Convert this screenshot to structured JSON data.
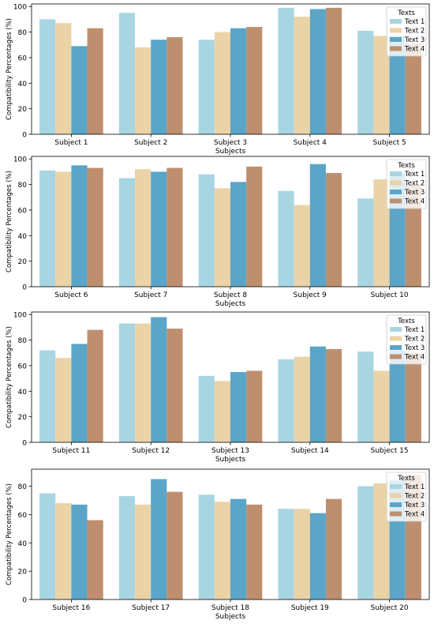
{
  "chart_data": [
    {
      "type": "bar",
      "xlabel": "Subjects",
      "ylabel": "Compatibility Percentages (%)",
      "ylim": [
        0,
        102
      ],
      "yticks": [
        0,
        20,
        40,
        60,
        80,
        100
      ],
      "legend_title": "Texts",
      "legend_position": "top-right",
      "categories": [
        "Subject 1",
        "Subject 2",
        "Subject 3",
        "Subject 4",
        "Subject 5"
      ],
      "series": [
        {
          "name": "Text 1",
          "color": "#a8d5e2",
          "values": [
            90,
            95,
            74,
            99,
            81
          ]
        },
        {
          "name": "Text 2",
          "color": "#ebd3a8",
          "values": [
            87,
            68,
            80,
            92,
            77
          ]
        },
        {
          "name": "Text 3",
          "color": "#5aa5c8",
          "values": [
            69,
            74,
            83,
            98,
            77
          ]
        },
        {
          "name": "Text 4",
          "color": "#be8f6e",
          "values": [
            83,
            76,
            84,
            99,
            71
          ]
        }
      ]
    },
    {
      "type": "bar",
      "xlabel": "Subjects",
      "ylabel": "Compatibility Percentages (%)",
      "ylim": [
        0,
        102
      ],
      "yticks": [
        0,
        20,
        40,
        60,
        80,
        100
      ],
      "legend_title": "Texts",
      "legend_position": "top-right",
      "categories": [
        "Subject 6",
        "Subject 7",
        "Subject 8",
        "Subject 9",
        "Subject 10"
      ],
      "series": [
        {
          "name": "Text 1",
          "color": "#a8d5e2",
          "values": [
            91,
            85,
            88,
            75,
            69
          ]
        },
        {
          "name": "Text 2",
          "color": "#ebd3a8",
          "values": [
            90,
            92,
            77,
            64,
            84
          ]
        },
        {
          "name": "Text 3",
          "color": "#5aa5c8",
          "values": [
            95,
            90,
            82,
            96,
            89
          ]
        },
        {
          "name": "Text 4",
          "color": "#be8f6e",
          "values": [
            93,
            93,
            94,
            89,
            80
          ]
        }
      ]
    },
    {
      "type": "bar",
      "xlabel": "Subjects",
      "ylabel": "Compatibility Percentages (%)",
      "ylim": [
        0,
        102
      ],
      "yticks": [
        0,
        20,
        40,
        60,
        80,
        100
      ],
      "legend_title": "Texts",
      "legend_position": "top-right",
      "categories": [
        "Subject 11",
        "Subject 12",
        "Subject 13",
        "Subject 14",
        "Subject 15"
      ],
      "series": [
        {
          "name": "Text 1",
          "color": "#a8d5e2",
          "values": [
            72,
            93,
            52,
            65,
            71
          ]
        },
        {
          "name": "Text 2",
          "color": "#ebd3a8",
          "values": [
            66,
            93,
            48,
            67,
            56
          ]
        },
        {
          "name": "Text 3",
          "color": "#5aa5c8",
          "values": [
            77,
            98,
            55,
            75,
            72
          ]
        },
        {
          "name": "Text 4",
          "color": "#be8f6e",
          "values": [
            88,
            89,
            56,
            73,
            70
          ]
        }
      ]
    },
    {
      "type": "bar",
      "xlabel": "Subjects",
      "ylabel": "Compatibility Percentages (%)",
      "ylim": [
        0,
        92
      ],
      "yticks": [
        0,
        20,
        40,
        60,
        80
      ],
      "legend_title": "Texts",
      "legend_position": "top-right",
      "categories": [
        "Subject 16",
        "Subject 17",
        "Subject 18",
        "Subject 19",
        "Subject 20"
      ],
      "series": [
        {
          "name": "Text 1",
          "color": "#a8d5e2",
          "values": [
            75,
            73,
            74,
            64,
            80
          ]
        },
        {
          "name": "Text 2",
          "color": "#ebd3a8",
          "values": [
            68,
            67,
            69,
            64,
            82
          ]
        },
        {
          "name": "Text 3",
          "color": "#5aa5c8",
          "values": [
            67,
            85,
            71,
            61,
            84
          ]
        },
        {
          "name": "Text 4",
          "color": "#be8f6e",
          "values": [
            56,
            76,
            67,
            71,
            88
          ]
        }
      ]
    }
  ]
}
